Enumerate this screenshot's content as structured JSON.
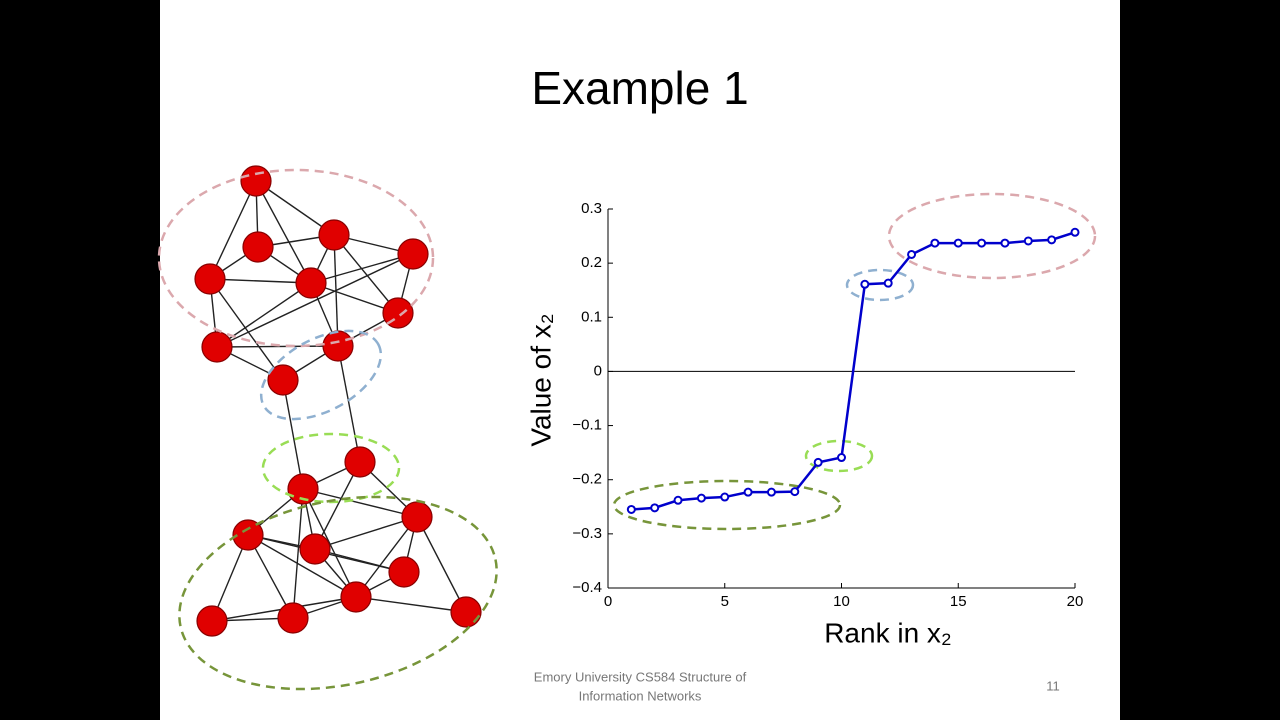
{
  "slide": {
    "title": "Example 1",
    "footer": [
      "Emory University CS584 Structure of",
      "Information Networks"
    ],
    "page_number": "11"
  },
  "chart_data": {
    "type": "line",
    "xlabel": "Rank in x₂",
    "ylabel": "Value of x₂",
    "x": [
      1,
      2,
      3,
      4,
      5,
      6,
      7,
      8,
      9,
      10,
      11,
      12,
      13,
      14,
      15,
      16,
      17,
      18,
      19,
      20
    ],
    "series": [
      {
        "color": "#0000cc",
        "values": [
          -0.255,
          -0.252,
          -0.238,
          -0.234,
          -0.232,
          -0.223,
          -0.223,
          -0.222,
          -0.168,
          -0.159,
          0.161,
          0.163,
          0.216,
          0.237,
          0.237,
          0.237,
          0.237,
          0.241,
          0.243,
          0.257
        ]
      }
    ],
    "xlim": [
      0,
      20
    ],
    "xticks": [
      0,
      5,
      10,
      15,
      20
    ],
    "ylim": [
      -0.4,
      0.3
    ],
    "yticks": [
      {
        "value": -0.4,
        "label": "−0.4"
      },
      {
        "value": -0.3,
        "label": "−0.3"
      },
      {
        "value": -0.2,
        "label": "−0.2"
      },
      {
        "value": -0.1,
        "label": "−0.1"
      },
      0,
      0.1,
      0.2,
      0.3
    ]
  }
}
